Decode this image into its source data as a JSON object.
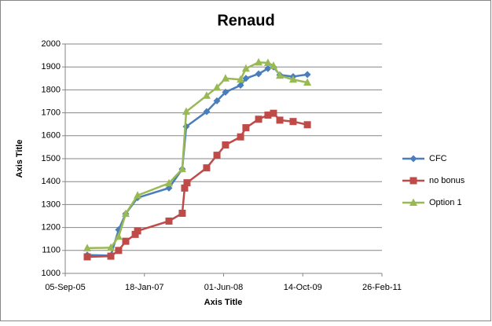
{
  "chart_data": {
    "type": "line",
    "title": "Renaud",
    "x_label": "Axis Title",
    "y_label": "Axis Title",
    "xlim": [
      38600,
      40600
    ],
    "xticks": [
      {
        "value": 38600,
        "label": "05-Sep-05"
      },
      {
        "value": 39100,
        "label": "18-Jan-07"
      },
      {
        "value": 39600,
        "label": "01-Jun-08"
      },
      {
        "value": 40100,
        "label": "14-Oct-09"
      },
      {
        "value": 40600,
        "label": "26-Feb-11"
      }
    ],
    "ylim": [
      1000,
      2000
    ],
    "yticks": [
      1000,
      1100,
      1200,
      1300,
      1400,
      1500,
      1600,
      1700,
      1800,
      1900,
      2000
    ],
    "grid": true,
    "legend": "right",
    "series": [
      {
        "name": "CFC",
        "color": "#4a7ebb",
        "marker": "diamond",
        "x": [
          38739,
          38888,
          38937,
          38982,
          39057,
          39255,
          39339,
          39364,
          39493,
          39558,
          39612,
          39707,
          39741,
          39821,
          39880,
          39915,
          39955,
          40039,
          40129
        ],
        "values": [
          1080,
          1078,
          1190,
          1260,
          1330,
          1372,
          1455,
          1640,
          1705,
          1752,
          1790,
          1820,
          1850,
          1870,
          1893,
          1900,
          1865,
          1858,
          1867
        ]
      },
      {
        "name": "no bonus",
        "color": "#be4b48",
        "marker": "square",
        "x": [
          38739,
          38888,
          38937,
          38982,
          39042,
          39057,
          39255,
          39339,
          39354,
          39369,
          39493,
          39558,
          39612,
          39707,
          39741,
          39821,
          39880,
          39915,
          39955,
          40039,
          40129
        ],
        "values": [
          1072,
          1075,
          1100,
          1140,
          1170,
          1185,
          1228,
          1262,
          1372,
          1395,
          1460,
          1515,
          1560,
          1595,
          1635,
          1672,
          1690,
          1698,
          1668,
          1662,
          1648
        ]
      },
      {
        "name": "Option 1",
        "color": "#98b954",
        "marker": "triangle",
        "x": [
          38739,
          38888,
          38937,
          38982,
          39057,
          39255,
          39339,
          39364,
          39493,
          39558,
          39612,
          39707,
          39741,
          39821,
          39880,
          39915,
          39955,
          40039,
          40129
        ],
        "values": [
          1110,
          1112,
          1160,
          1260,
          1340,
          1393,
          1455,
          1705,
          1775,
          1810,
          1850,
          1845,
          1893,
          1920,
          1918,
          1905,
          1862,
          1845,
          1832
        ]
      }
    ]
  }
}
